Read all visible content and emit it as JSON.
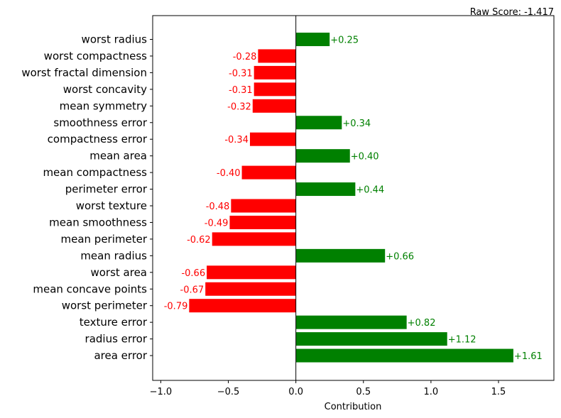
{
  "chart_data": {
    "type": "bar",
    "orientation": "horizontal",
    "annotation": "Raw Score: -1.417",
    "xlabel": "Contribution",
    "ylabel": "",
    "xlim": [
      -1.06,
      1.91
    ],
    "xticks": [
      -1.0,
      -0.5,
      0.0,
      0.5,
      1.0,
      1.5
    ],
    "xtick_labels": [
      "−1.0",
      "−0.5",
      "0.0",
      "0.5",
      "1.0",
      "1.5"
    ],
    "grid": false,
    "colors": {
      "positive": "#008000",
      "negative": "#ff0000"
    },
    "categories": [
      "worst radius",
      "worst compactness",
      "worst fractal dimension",
      "worst concavity",
      "mean symmetry",
      "smoothness error",
      "compactness error",
      "mean area",
      "mean compactness",
      "perimeter error",
      "worst texture",
      "mean smoothness",
      "mean perimeter",
      "mean radius",
      "worst area",
      "mean concave points",
      "worst perimeter",
      "texture error",
      "radius error",
      "area error"
    ],
    "values": [
      0.25,
      -0.28,
      -0.31,
      -0.31,
      -0.32,
      0.34,
      -0.34,
      0.4,
      -0.4,
      0.44,
      -0.48,
      -0.49,
      -0.62,
      0.66,
      -0.66,
      -0.67,
      -0.79,
      0.82,
      1.12,
      1.61
    ],
    "value_labels": [
      "+0.25",
      "-0.28",
      "-0.31",
      "-0.31",
      "-0.32",
      "+0.34",
      "-0.34",
      "+0.40",
      "-0.40",
      "+0.44",
      "-0.48",
      "-0.49",
      "-0.62",
      "+0.66",
      "-0.66",
      "-0.67",
      "-0.79",
      "+0.82",
      "+1.12",
      "+1.61"
    ]
  }
}
